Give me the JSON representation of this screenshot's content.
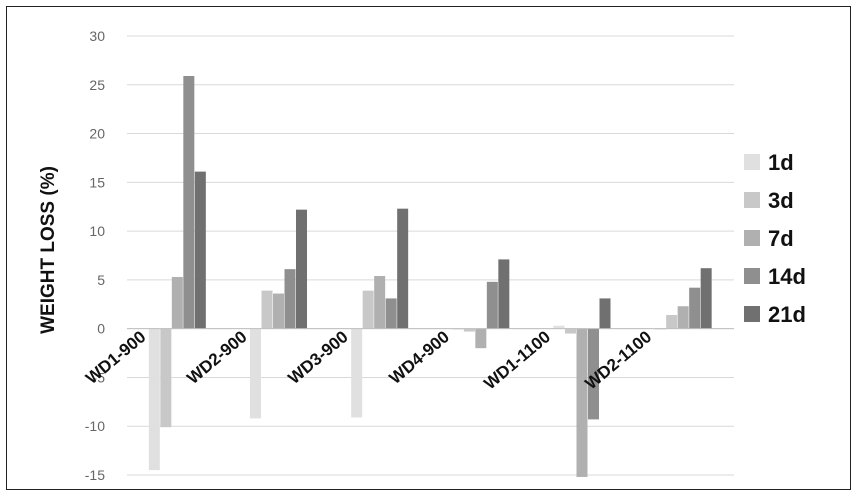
{
  "chart_data": {
    "type": "bar",
    "ylabel": "WEIGHT LOSS (%)",
    "ylim": [
      -15,
      30
    ],
    "yticks": [
      "30",
      "25",
      "20",
      "15",
      "10",
      "5",
      "0",
      "-5",
      "-10",
      "-15"
    ],
    "grid": true,
    "legend_position": "right",
    "categories": [
      "WD1-900",
      "WD2-900",
      "WD3-900",
      "WD4-900",
      "WD1-1100",
      "WD2-1100"
    ],
    "series": [
      {
        "name": "1d",
        "color": "#e0e0e0",
        "values": [
          -14.5,
          -9.2,
          -9.1,
          -0.1,
          0.3,
          -0.1
        ]
      },
      {
        "name": "3d",
        "color": "#c8c8c8",
        "values": [
          -10.1,
          3.9,
          3.9,
          -0.3,
          -0.5,
          1.4
        ]
      },
      {
        "name": "7d",
        "color": "#b0b0b0",
        "values": [
          5.3,
          3.6,
          5.4,
          -2.0,
          -15.2,
          2.3
        ]
      },
      {
        "name": "14d",
        "color": "#8f8f8f",
        "values": [
          25.9,
          6.1,
          3.1,
          4.8,
          -9.3,
          4.2
        ]
      },
      {
        "name": "21d",
        "color": "#707070",
        "values": [
          16.1,
          12.2,
          12.3,
          7.1,
          3.1,
          6.2
        ]
      }
    ]
  }
}
